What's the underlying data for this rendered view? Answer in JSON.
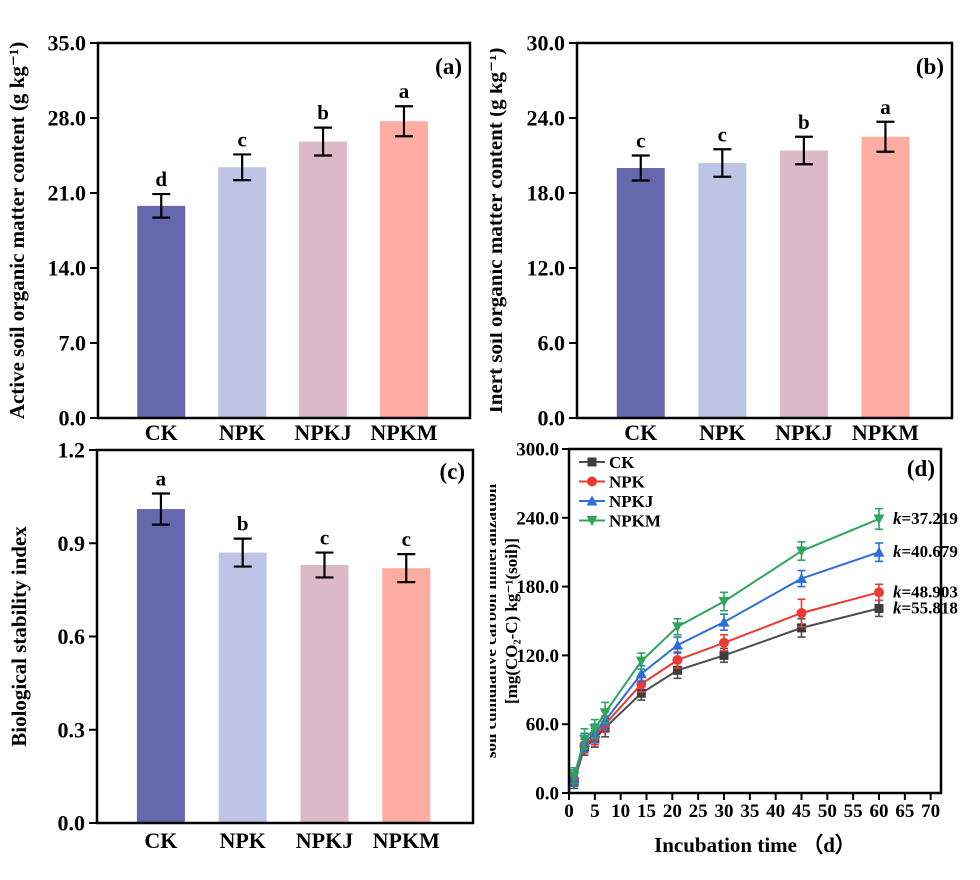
{
  "figure": {
    "background": "#ffffff",
    "treatments": [
      "CK",
      "NPK",
      "NPKJ",
      "NPKM"
    ],
    "bar_colors": [
      "#6668ae",
      "#bec4e6",
      "#dcb9c6",
      "#ffaca3"
    ]
  },
  "chart_data": [
    {
      "id": "panel-a",
      "type": "bar",
      "panel_label": "(a)",
      "ylabel": "Active soil organic matter content (g kg⁻¹)",
      "categories": [
        "CK",
        "NPK",
        "NPKJ",
        "NPKM"
      ],
      "values": [
        19.8,
        23.4,
        25.8,
        27.7
      ],
      "errors": [
        1.1,
        1.2,
        1.3,
        1.4
      ],
      "sig_letters": [
        "d",
        "c",
        "b",
        "a"
      ],
      "ylim": [
        0,
        35
      ],
      "yticks": [
        0,
        7,
        14,
        21,
        28,
        35
      ],
      "ytick_labels": [
        "0.0",
        "7.0",
        "14.0",
        "21.0",
        "28.0",
        "35.0"
      ],
      "bar_colors": [
        "#6668ae",
        "#bec4e6",
        "#dcb9c6",
        "#ffaca3"
      ],
      "grid": false
    },
    {
      "id": "panel-b",
      "type": "bar",
      "panel_label": "(b)",
      "ylabel": "Inert soil organic matter content (g kg⁻¹)",
      "categories": [
        "CK",
        "NPK",
        "NPKJ",
        "NPKM"
      ],
      "values": [
        20.0,
        20.4,
        21.4,
        22.5
      ],
      "errors": [
        1.0,
        1.1,
        1.1,
        1.2
      ],
      "sig_letters": [
        "c",
        "c",
        "b",
        "a"
      ],
      "ylim": [
        0,
        30
      ],
      "yticks": [
        0,
        6,
        12,
        18,
        24,
        30
      ],
      "ytick_labels": [
        "0.0",
        "6.0",
        "12.0",
        "18.0",
        "24.0",
        "30.0"
      ],
      "bar_colors": [
        "#6668ae",
        "#bec4e6",
        "#dcb9c6",
        "#ffaca3"
      ],
      "grid": false
    },
    {
      "id": "panel-c",
      "type": "bar",
      "panel_label": "(c)",
      "ylabel": "Biological stability index",
      "categories": [
        "CK",
        "NPK",
        "NPKJ",
        "NPKM"
      ],
      "values": [
        1.01,
        0.87,
        0.83,
        0.82
      ],
      "errors": [
        0.05,
        0.045,
        0.04,
        0.045
      ],
      "sig_letters": [
        "a",
        "b",
        "c",
        "c"
      ],
      "ylim": [
        0,
        1.2
      ],
      "yticks": [
        0,
        0.3,
        0.6,
        0.9,
        1.2
      ],
      "ytick_labels": [
        "0.0",
        "0.3",
        "0.6",
        "0.9",
        "1.2"
      ],
      "bar_colors": [
        "#6668ae",
        "#bec4e6",
        "#dcb9c6",
        "#ffaca3"
      ],
      "grid": false
    },
    {
      "id": "panel-d",
      "type": "line",
      "panel_label": "(d)",
      "xlabel": "Incubation time （d）",
      "ylabel_line1": "soil cumulative carbon mineralization",
      "ylabel_line2": "[mg(CO₂-C) kg⁻¹(soil)]",
      "x": [
        1,
        3,
        5,
        7,
        14,
        21,
        30,
        45,
        60
      ],
      "xlim": [
        0,
        72
      ],
      "ylim": [
        0,
        300
      ],
      "xticks": [
        0,
        5,
        10,
        15,
        20,
        25,
        30,
        35,
        40,
        45,
        50,
        55,
        60,
        65,
        70
      ],
      "yticks": [
        0,
        60,
        120,
        180,
        240,
        300
      ],
      "ytick_labels": [
        "0.0",
        "60.0",
        "120.0",
        "180.0",
        "240.0",
        "300.0"
      ],
      "legend_position": "top-left-inside",
      "grid": false,
      "series": [
        {
          "name": "CK",
          "marker": "square",
          "color": "#4d4d4d",
          "marker_color": "#3d3d3d",
          "values": [
            10,
            40,
            47,
            57,
            87,
            107,
            120,
            144,
            161
          ],
          "errors": [
            6,
            7,
            7,
            8,
            6,
            7,
            6,
            8,
            7
          ],
          "k_label": "k=55.818",
          "k_color": "#3d3d3d"
        },
        {
          "name": "NPK",
          "marker": "circle",
          "color": "#e93b32",
          "marker_color": "#e93b32",
          "values": [
            12,
            42,
            49,
            60,
            95,
            116,
            131,
            157,
            175
          ],
          "errors": [
            6,
            7,
            7,
            7,
            7,
            7,
            7,
            12,
            7
          ],
          "k_label": "k=48.903",
          "k_color": "#e93b32"
        },
        {
          "name": "NPKJ",
          "marker": "triangle-up",
          "color": "#2b70d8",
          "marker_color": "#2b70d8",
          "values": [
            13,
            44,
            52,
            63,
            104,
            129,
            149,
            187,
            210
          ],
          "errors": [
            7,
            8,
            8,
            8,
            7,
            7,
            7,
            7,
            8
          ],
          "k_label": "k=40.679",
          "k_color": "#2b70d8"
        },
        {
          "name": "NPKM",
          "marker": "triangle-down",
          "color": "#2ea45c",
          "marker_color": "#2ea45c",
          "values": [
            15,
            47,
            56,
            70,
            115,
            145,
            167,
            211,
            239
          ],
          "errors": [
            7,
            9,
            8,
            9,
            7,
            7,
            8,
            8,
            9
          ],
          "k_label": "k=37.219",
          "k_color": "#2ea45c"
        }
      ]
    }
  ]
}
